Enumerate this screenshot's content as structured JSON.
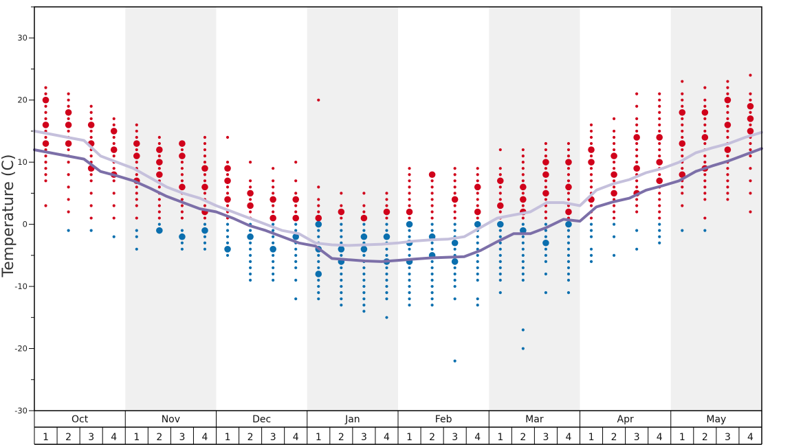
{
  "chart_data": {
    "type": "scatter",
    "ylabel": "Temperature (C)",
    "ylim": [
      -30,
      35
    ],
    "yticks": [
      -30,
      -20,
      -10,
      0,
      10,
      20,
      30
    ],
    "months": [
      "Oct",
      "Nov",
      "Dec",
      "Jan",
      "Feb",
      "Mar",
      "Apr",
      "May"
    ],
    "weeks": [
      "1",
      "2",
      "3",
      "4"
    ],
    "shaded_months": [
      "Nov",
      "Jan",
      "Mar",
      "May"
    ],
    "colors": {
      "warm_dots": "#d0021b",
      "cold_dots": "#0b6fae",
      "high_line": "#c5c0dc",
      "low_line": "#7c6fa8",
      "shade": "#f0f0f0"
    },
    "series": [
      {
        "type": "line",
        "values": [
          15,
          14.5,
          14,
          13.5,
          11,
          10,
          9,
          7.5,
          6,
          5,
          4.2,
          3,
          2,
          1,
          0,
          -1,
          -1.5,
          -3,
          -3.3,
          -3.4,
          -3.3,
          -3.2,
          -3,
          -2.7,
          -2.5,
          -2.4,
          -2,
          -0.5,
          1,
          1.5,
          2,
          3.5,
          3.5,
          3,
          5.5,
          6.5,
          7.2,
          8.3,
          9,
          10,
          11.5,
          12.3,
          13,
          14,
          14.8
        ]
      },
      {
        "type": "line",
        "values": [
          12,
          11.5,
          11,
          10.5,
          8.5,
          7.8,
          7,
          5.8,
          4.5,
          3.5,
          2.5,
          2,
          1,
          -0.2,
          -1,
          -2,
          -3,
          -3.5,
          -5.5,
          -5.7,
          -5.9,
          -6,
          -5.8,
          -5.6,
          -5.4,
          -5.3,
          -5.2,
          -4.2,
          -2.8,
          -1.5,
          -1.5,
          -0.5,
          0.8,
          0.5,
          2.8,
          3.6,
          4.2,
          5.5,
          6.2,
          7,
          8.5,
          9.4,
          10.2,
          11.2,
          12.2
        ]
      }
    ],
    "columns": [
      {
        "warm": [
          3,
          7,
          8,
          9,
          10,
          11,
          12,
          13,
          14,
          15,
          16,
          17,
          18,
          19,
          20,
          21,
          22
        ],
        "cold": [],
        "big_warm": [
          20,
          16,
          13
        ],
        "big_cold": []
      },
      {
        "warm": [
          2,
          4,
          6,
          8,
          10,
          11,
          12,
          13,
          14,
          15,
          16,
          17,
          18,
          19,
          20,
          21
        ],
        "cold": [
          -1
        ],
        "big_warm": [
          18,
          16,
          13
        ],
        "big_cold": []
      },
      {
        "warm": [
          1,
          3,
          5,
          7,
          8,
          9,
          10,
          11,
          12,
          13,
          14,
          15,
          16,
          17,
          18,
          19
        ],
        "cold": [
          -1
        ],
        "big_warm": [
          16,
          13,
          9
        ],
        "big_cold": []
      },
      {
        "warm": [
          1,
          3,
          5,
          7,
          8,
          9,
          10,
          11,
          12,
          13,
          14,
          15,
          16,
          17
        ],
        "cold": [
          -2
        ],
        "big_warm": [
          15,
          12,
          8
        ],
        "big_cold": []
      },
      {
        "warm": [
          1,
          3,
          4,
          5,
          6,
          7,
          8,
          9,
          10,
          11,
          12,
          13,
          14,
          15,
          16
        ],
        "cold": [
          -1,
          -2,
          -4
        ],
        "big_warm": [
          13,
          11,
          7
        ],
        "big_cold": []
      },
      {
        "warm": [
          1,
          2,
          3,
          4,
          5,
          6,
          7,
          8,
          9,
          10,
          11,
          12,
          13,
          14
        ],
        "cold": [
          0,
          -1
        ],
        "big_warm": [
          12,
          10,
          8
        ],
        "big_cold": [
          -1
        ]
      },
      {
        "warm": [
          1,
          2,
          3,
          4,
          5,
          6,
          7,
          8,
          9,
          10,
          11,
          12,
          13
        ],
        "cold": [
          -1,
          -2,
          -3,
          -4
        ],
        "big_warm": [
          13,
          11,
          6
        ],
        "big_cold": [
          -2
        ]
      },
      {
        "warm": [
          1,
          2,
          3,
          4,
          5,
          6,
          7,
          8,
          9,
          10,
          11,
          12,
          13,
          14
        ],
        "cold": [
          0,
          -1,
          -2,
          -3,
          -4
        ],
        "big_warm": [
          9,
          6,
          2
        ],
        "big_cold": [
          -1
        ]
      },
      {
        "warm": [
          1,
          2,
          3,
          4,
          5,
          6,
          7,
          8,
          9,
          10,
          14
        ],
        "cold": [
          0,
          -1,
          -2,
          -3,
          -4,
          -5
        ],
        "big_warm": [
          9,
          7,
          4
        ],
        "big_cold": [
          -4
        ]
      },
      {
        "warm": [
          1,
          2,
          3,
          4,
          5,
          6,
          7,
          10
        ],
        "cold": [
          0,
          -1,
          -2,
          -3,
          -4,
          -5,
          -6,
          -7,
          -8,
          -9
        ],
        "big_warm": [
          5,
          3
        ],
        "big_cold": [
          -2
        ]
      },
      {
        "warm": [
          1,
          2,
          3,
          4,
          5,
          6,
          7,
          9
        ],
        "cold": [
          0,
          -1,
          -2,
          -3,
          -4,
          -5,
          -6,
          -7,
          -8,
          -9
        ],
        "big_warm": [
          4,
          1
        ],
        "big_cold": [
          -4
        ]
      },
      {
        "warm": [
          1,
          2,
          3,
          4,
          5,
          7,
          10
        ],
        "cold": [
          0,
          -1,
          -2,
          -3,
          -4,
          -5,
          -6,
          -7,
          -9,
          -12
        ],
        "big_warm": [
          4,
          1
        ],
        "big_cold": [
          -2
        ]
      },
      {
        "warm": [
          1,
          2,
          3,
          4,
          6,
          20
        ],
        "cold": [
          0,
          -1,
          -2,
          -3,
          -4,
          -5,
          -6,
          -7,
          -8,
          -9,
          -10,
          -11,
          -12
        ],
        "big_warm": [
          1
        ],
        "big_cold": [
          0,
          -4,
          -8
        ]
      },
      {
        "warm": [
          1,
          2,
          3,
          5
        ],
        "cold": [
          0,
          -1,
          -2,
          -3,
          -4,
          -5,
          -6,
          -7,
          -8,
          -9,
          -10,
          -11,
          -12,
          -13
        ],
        "big_warm": [
          2
        ],
        "big_cold": [
          -4,
          -6
        ]
      },
      {
        "warm": [
          1,
          2,
          3,
          5
        ],
        "cold": [
          0,
          -1,
          -2,
          -3,
          -4,
          -5,
          -6,
          -7,
          -8,
          -9,
          -10,
          -11,
          -12,
          -13,
          -14
        ],
        "big_warm": [
          1
        ],
        "big_cold": [
          -2,
          -4
        ]
      },
      {
        "warm": [
          1,
          2,
          3,
          4,
          5
        ],
        "cold": [
          0,
          -1,
          -2,
          -3,
          -4,
          -5,
          -6,
          -7,
          -8,
          -9,
          -10,
          -11,
          -12,
          -15
        ],
        "big_warm": [
          2
        ],
        "big_cold": [
          -2,
          -6
        ]
      },
      {
        "warm": [
          1,
          2,
          3,
          4,
          5,
          6,
          7,
          8,
          9
        ],
        "cold": [
          0,
          -1,
          -2,
          -3,
          -4,
          -5,
          -6,
          -7,
          -8,
          -9,
          -10,
          -11,
          -12,
          -13
        ],
        "big_warm": [
          2
        ],
        "big_cold": [
          0,
          -3,
          -6
        ]
      },
      {
        "warm": [
          1,
          2,
          3,
          4,
          5,
          6,
          7,
          8
        ],
        "cold": [
          0,
          -1,
          -2,
          -3,
          -4,
          -5,
          -6,
          -7,
          -8,
          -9,
          -10,
          -11,
          -12,
          -13
        ],
        "big_warm": [
          8
        ],
        "big_cold": [
          -2,
          -5
        ]
      },
      {
        "warm": [
          1,
          2,
          3,
          4,
          5,
          6,
          7,
          8,
          9
        ],
        "cold": [
          0,
          -1,
          -2,
          -3,
          -4,
          -5,
          -6,
          -7,
          -8,
          -9,
          -10,
          -12,
          -22
        ],
        "big_warm": [
          4
        ],
        "big_cold": [
          -3,
          -6
        ]
      },
      {
        "warm": [
          1,
          2,
          3,
          4,
          5,
          6,
          7,
          8,
          9
        ],
        "cold": [
          0,
          -1,
          -2,
          -3,
          -4,
          -5,
          -6,
          -7,
          -8,
          -9,
          -12,
          -13
        ],
        "big_warm": [
          6,
          2
        ],
        "big_cold": [
          0
        ]
      },
      {
        "warm": [
          1,
          2,
          3,
          4,
          5,
          6,
          7,
          8,
          9,
          12
        ],
        "cold": [
          0,
          -1,
          -2,
          -3,
          -4,
          -5,
          -6,
          -7,
          -8,
          -9,
          -11
        ],
        "big_warm": [
          7,
          3
        ],
        "big_cold": [
          0
        ]
      },
      {
        "warm": [
          1,
          2,
          3,
          4,
          5,
          6,
          7,
          8,
          9,
          10,
          11,
          12
        ],
        "cold": [
          0,
          -1,
          -2,
          -3,
          -4,
          -5,
          -6,
          -7,
          -8,
          -9,
          -17,
          -20
        ],
        "big_warm": [
          6,
          4,
          2
        ],
        "big_cold": [
          -1
        ]
      },
      {
        "warm": [
          1,
          2,
          3,
          4,
          5,
          6,
          7,
          8,
          9,
          10,
          11,
          12,
          13
        ],
        "cold": [
          0,
          -1,
          -2,
          -3,
          -4,
          -5,
          -6,
          -8,
          -11
        ],
        "big_warm": [
          10,
          8,
          5
        ],
        "big_cold": [
          -3
        ]
      },
      {
        "warm": [
          1,
          2,
          3,
          4,
          5,
          6,
          7,
          8,
          9,
          10,
          11,
          12,
          13
        ],
        "cold": [
          0,
          -1,
          -2,
          -3,
          -4,
          -5,
          -6,
          -7,
          -8,
          -9,
          -11
        ],
        "big_warm": [
          10,
          6,
          2
        ],
        "big_cold": [
          0
        ]
      },
      {
        "warm": [
          1,
          2,
          3,
          4,
          5,
          6,
          7,
          8,
          9,
          10,
          11,
          12,
          13,
          14,
          15,
          16
        ],
        "cold": [
          0,
          -1,
          -2,
          -4,
          -5,
          -6
        ],
        "big_warm": [
          12,
          10,
          4
        ],
        "big_cold": []
      },
      {
        "warm": [
          1,
          2,
          3,
          4,
          5,
          6,
          7,
          8,
          9,
          10,
          11,
          12,
          13,
          14,
          15,
          17
        ],
        "cold": [
          0,
          -2,
          -5
        ],
        "big_warm": [
          11,
          8,
          5
        ],
        "big_cold": []
      },
      {
        "warm": [
          2,
          3,
          4,
          5,
          6,
          7,
          8,
          9,
          10,
          11,
          12,
          13,
          14,
          15,
          16,
          17,
          19,
          21
        ],
        "cold": [
          -1,
          -4
        ],
        "big_warm": [
          14,
          9,
          5
        ],
        "big_cold": []
      },
      {
        "warm": [
          1,
          2,
          3,
          4,
          5,
          6,
          7,
          8,
          9,
          10,
          11,
          12,
          13,
          14,
          15,
          16,
          17,
          18,
          19,
          20,
          21
        ],
        "cold": [
          0,
          -1,
          -2,
          -3
        ],
        "big_warm": [
          14,
          10,
          7
        ],
        "big_cold": []
      },
      {
        "warm": [
          3,
          5,
          6,
          7,
          8,
          9,
          10,
          11,
          12,
          13,
          14,
          15,
          16,
          17,
          18,
          19,
          20,
          21,
          23
        ],
        "cold": [
          -1
        ],
        "big_warm": [
          18,
          13,
          8
        ],
        "big_cold": []
      },
      {
        "warm": [
          1,
          4,
          5,
          6,
          7,
          8,
          9,
          10,
          11,
          12,
          13,
          14,
          15,
          16,
          17,
          18,
          19,
          20,
          22
        ],
        "cold": [
          -1
        ],
        "big_warm": [
          18,
          14,
          9
        ],
        "big_cold": []
      },
      {
        "warm": [
          4,
          5,
          6,
          7,
          8,
          9,
          10,
          11,
          12,
          13,
          14,
          15,
          16,
          17,
          18,
          19,
          20,
          21,
          22,
          23
        ],
        "cold": [],
        "big_warm": [
          20,
          16,
          12
        ],
        "big_cold": []
      },
      {
        "warm": [
          2,
          5,
          7,
          9,
          11,
          12,
          13,
          14,
          15,
          16,
          17,
          18,
          19,
          20,
          21,
          24
        ],
        "cold": [],
        "big_warm": [
          19,
          17,
          15
        ],
        "big_cold": []
      }
    ]
  }
}
